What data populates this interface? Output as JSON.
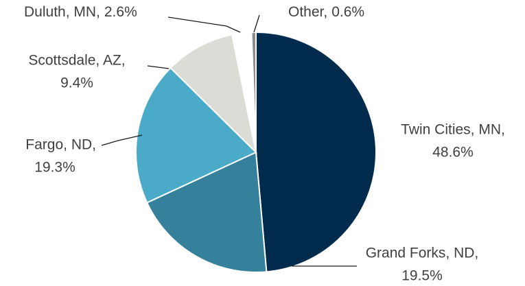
{
  "chart_data": {
    "type": "pie",
    "categories": [
      "Twin Cities, MN,",
      "Grand Forks, ND,",
      "Fargo, ND,",
      "Scottsdale, AZ,",
      "Duluth, MN,",
      "Other,"
    ],
    "values": [
      48.6,
      19.5,
      19.3,
      9.4,
      2.6,
      0.6
    ],
    "value_labels": [
      "48.6%",
      "19.5%",
      "19.3%",
      "9.4%",
      "2.6%",
      "0.6%"
    ],
    "colors": [
      "#002b4d",
      "#35809a",
      "#4aaac8",
      "#dcdcd6",
      "#ffffff",
      "#8c8c8c"
    ]
  }
}
